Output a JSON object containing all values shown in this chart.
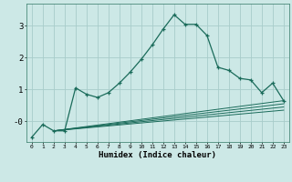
{
  "title": "",
  "xlabel": "Humidex (Indice chaleur)",
  "ylabel": "",
  "bg_color": "#cce8e6",
  "grid_color": "#a8ccca",
  "line_color": "#1a6b5a",
  "xlim": [
    -0.5,
    23.5
  ],
  "ylim": [
    -0.65,
    3.7
  ],
  "main_line": {
    "x": [
      0,
      1,
      2,
      3,
      4,
      5,
      6,
      7,
      8,
      9,
      10,
      11,
      12,
      13,
      14,
      15,
      16,
      17,
      18,
      19,
      20,
      21,
      22,
      23
    ],
    "y": [
      -0.5,
      -0.1,
      -0.3,
      -0.3,
      1.05,
      0.85,
      0.75,
      0.9,
      1.2,
      1.55,
      1.95,
      2.4,
      2.9,
      3.35,
      3.05,
      3.05,
      2.7,
      1.7,
      1.6,
      1.35,
      1.3,
      0.9,
      1.2,
      0.65
    ]
  },
  "flat_lines": [
    {
      "x": [
        2,
        23
      ],
      "y": [
        -0.3,
        0.65
      ]
    },
    {
      "x": [
        2,
        23
      ],
      "y": [
        -0.3,
        0.55
      ]
    },
    {
      "x": [
        2,
        23
      ],
      "y": [
        -0.3,
        0.45
      ]
    },
    {
      "x": [
        2,
        23
      ],
      "y": [
        -0.3,
        0.35
      ]
    }
  ],
  "xtick_labels": [
    "0",
    "1",
    "2",
    "3",
    "4",
    "5",
    "6",
    "7",
    "8",
    "9",
    "10",
    "11",
    "12",
    "13",
    "14",
    "15",
    "16",
    "17",
    "18",
    "19",
    "20",
    "21",
    "22",
    "23"
  ],
  "ytick_labels": [
    "-0",
    "1",
    "2",
    "3"
  ],
  "ytick_vals": [
    0,
    1,
    2,
    3
  ]
}
